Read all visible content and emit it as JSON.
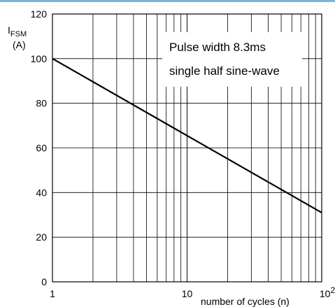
{
  "chart_data": {
    "type": "line",
    "title": "",
    "xlabel": "number of cycles (n)",
    "ylabel": {
      "main": "I",
      "sub": "FSM",
      "unit": "(A)"
    },
    "x_scale": "log",
    "xlim": [
      1,
      100
    ],
    "ylim": [
      0,
      120
    ],
    "x_ticks": [
      {
        "value": 1,
        "base": "1",
        "exp": ""
      },
      {
        "value": 10,
        "base": "10",
        "exp": ""
      },
      {
        "value": 100,
        "base": "10",
        "exp": "2"
      }
    ],
    "y_ticks": [
      0,
      20,
      40,
      60,
      80,
      100,
      120
    ],
    "grid": true,
    "series": [
      {
        "x": [
          1,
          100
        ],
        "y": [
          100,
          31
        ],
        "color": "#000000"
      }
    ],
    "annotations": [
      "Pulse width 8.3ms",
      "single half sine-wave"
    ]
  },
  "colors": {
    "accent": "#7fb3d5",
    "grid": "#000000",
    "line": "#000000"
  }
}
